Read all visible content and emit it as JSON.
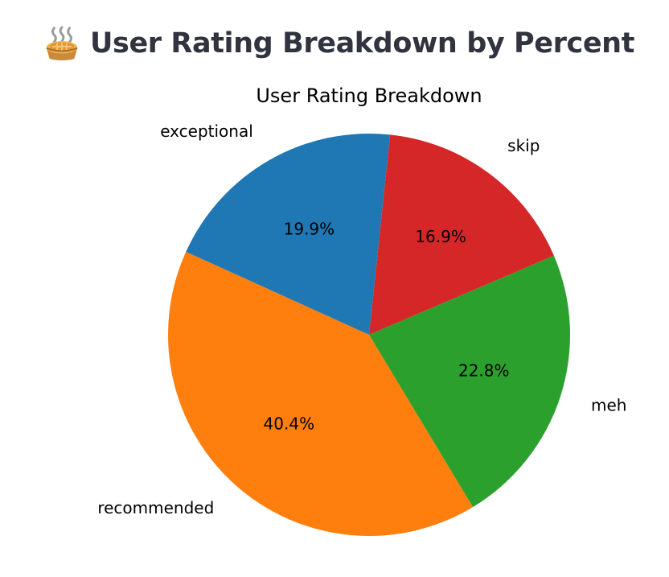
{
  "header": {
    "title": "User Rating Breakdown by Percent",
    "icon": "pie-emoji-icon"
  },
  "chart_data": {
    "type": "pie",
    "title": "User Rating Breakdown",
    "labels": [
      "skip",
      "meh",
      "recommended",
      "exceptional"
    ],
    "values": [
      16.9,
      22.8,
      40.4,
      19.9
    ],
    "percent_labels": [
      "16.9%",
      "22.8%",
      "40.4%",
      "19.9%"
    ],
    "colors": [
      "#d62728",
      "#2ca02c",
      "#ff7f0e",
      "#1f77b4"
    ],
    "direction": "clockwise",
    "legend": "none"
  }
}
